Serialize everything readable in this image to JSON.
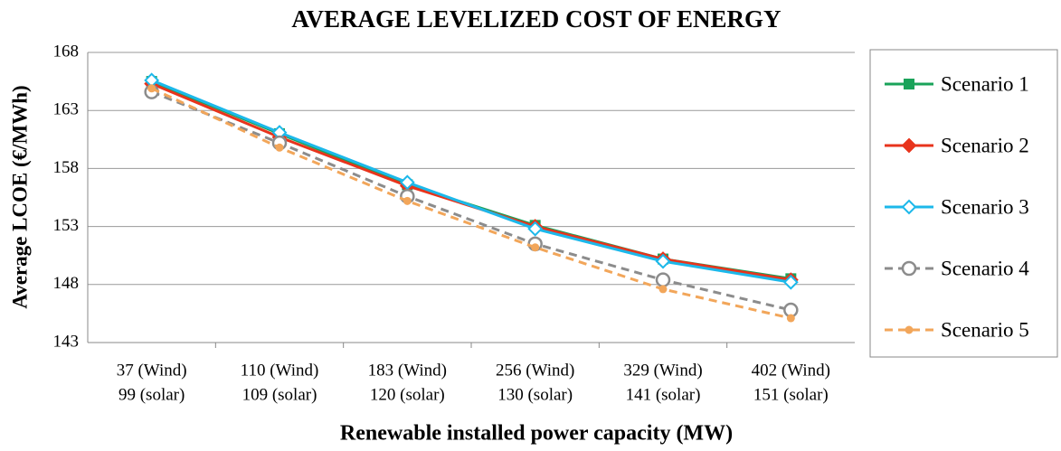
{
  "chart_data": {
    "type": "line",
    "title": "AVERAGE LEVELIZED COST OF ENERGY",
    "x_label": "Renewable installed power capacity (MW)",
    "y_label": "Average LCOE  (€/MWh)",
    "categories": [
      [
        "37 (Wind)",
        "99 (solar)"
      ],
      [
        "110 (Wind)",
        "109 (solar)"
      ],
      [
        "183 (Wind)",
        "120 (solar)"
      ],
      [
        "256 (Wind)",
        "130 (solar)"
      ],
      [
        "329 (Wind)",
        "141 (solar)"
      ],
      [
        "402 (Wind)",
        "151 (solar)"
      ]
    ],
    "ylim": [
      143,
      168
    ],
    "yticks": [
      143,
      148,
      153,
      158,
      163,
      168
    ],
    "grid": true,
    "legend": "right",
    "series": [
      {
        "name": "Scenario 1",
        "color": "#1aa35a",
        "marker": "square",
        "dash": false,
        "values": [
          165.5,
          161.0,
          156.6,
          153.1,
          150.2,
          148.5
        ]
      },
      {
        "name": "Scenario 2",
        "color": "#e8341c",
        "marker": "diamond",
        "dash": false,
        "values": [
          165.3,
          160.7,
          156.5,
          153.0,
          150.2,
          148.4
        ]
      },
      {
        "name": "Scenario 3",
        "color": "#1cb8ea",
        "marker": "open-diamond",
        "dash": false,
        "values": [
          165.6,
          161.1,
          156.8,
          152.8,
          150.0,
          148.2
        ]
      },
      {
        "name": "Scenario 4",
        "color": "#8c8c8c",
        "marker": "open-circle",
        "dash": true,
        "values": [
          164.6,
          160.2,
          155.6,
          151.5,
          148.4,
          145.8
        ]
      },
      {
        "name": "Scenario 5",
        "color": "#f2a65a",
        "marker": "dot",
        "dash": true,
        "values": [
          164.9,
          159.8,
          155.2,
          151.2,
          147.6,
          145.1
        ]
      }
    ]
  }
}
